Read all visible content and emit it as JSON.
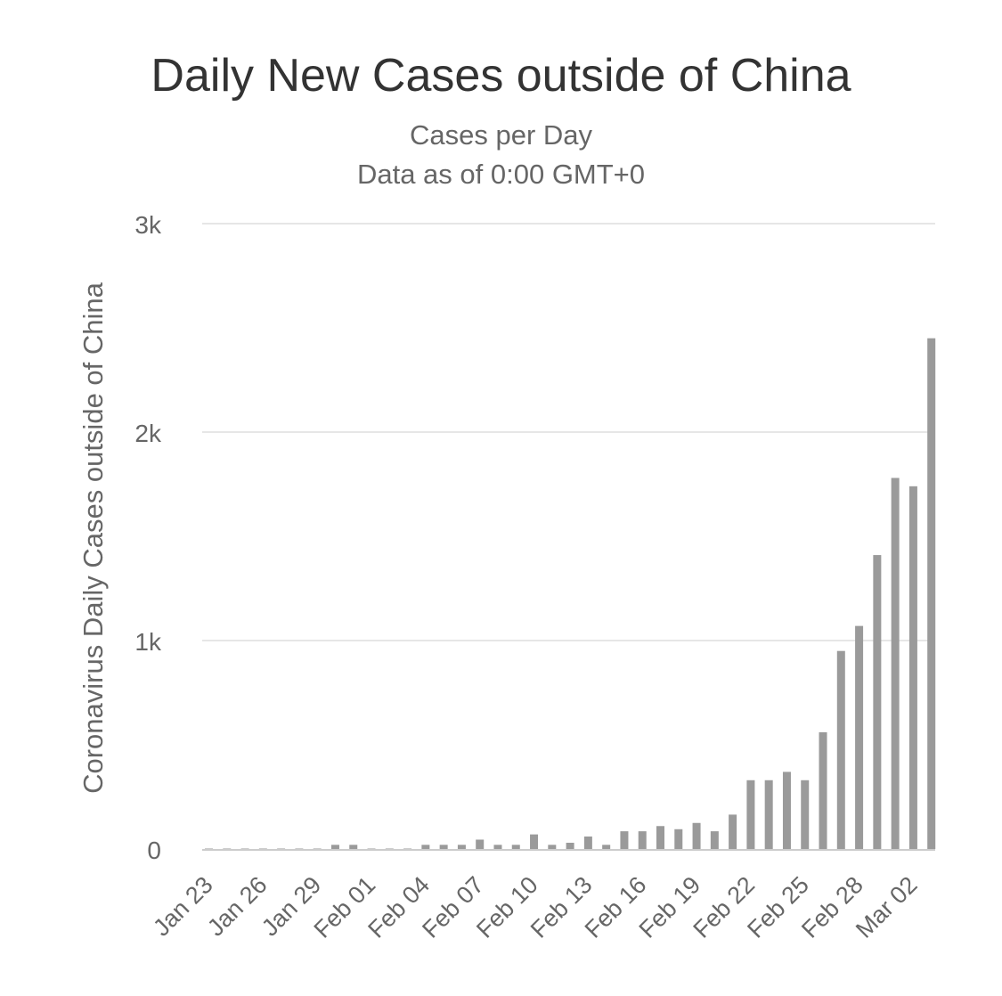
{
  "chart_data": {
    "type": "bar",
    "title": "Daily New Cases outside of China",
    "subtitle_lines": [
      "Cases per Day",
      "Data as of 0:00 GMT+0"
    ],
    "xlabel": "",
    "ylabel": "Coronavirus Daily Cases outside of China",
    "ylim": [
      0,
      3000
    ],
    "y_ticks": [
      {
        "value": 0,
        "label": "0"
      },
      {
        "value": 1000,
        "label": "1k"
      },
      {
        "value": 2000,
        "label": "2k"
      },
      {
        "value": 3000,
        "label": "3k"
      }
    ],
    "x_tick_labels": [
      "Jan 23",
      "Jan 26",
      "Jan 29",
      "Feb 01",
      "Feb 04",
      "Feb 07",
      "Feb 10",
      "Feb 13",
      "Feb 16",
      "Feb 19",
      "Feb 22",
      "Feb 25",
      "Feb 28",
      "Mar 02"
    ],
    "x_tick_every": 3,
    "categories": [
      "Jan 23",
      "Jan 24",
      "Jan 25",
      "Jan 26",
      "Jan 27",
      "Jan 28",
      "Jan 29",
      "Jan 30",
      "Jan 31",
      "Feb 01",
      "Feb 02",
      "Feb 03",
      "Feb 04",
      "Feb 05",
      "Feb 06",
      "Feb 07",
      "Feb 08",
      "Feb 09",
      "Feb 10",
      "Feb 11",
      "Feb 12",
      "Feb 13",
      "Feb 14",
      "Feb 15",
      "Feb 16",
      "Feb 17",
      "Feb 18",
      "Feb 19",
      "Feb 20",
      "Feb 21",
      "Feb 22",
      "Feb 23",
      "Feb 24",
      "Feb 25",
      "Feb 26",
      "Feb 27",
      "Feb 28",
      "Feb 29",
      "Mar 01",
      "Mar 02",
      "Mar 03"
    ],
    "values": [
      2,
      2,
      2,
      2,
      2,
      2,
      2,
      20,
      20,
      2,
      2,
      2,
      20,
      20,
      20,
      45,
      20,
      20,
      70,
      20,
      30,
      60,
      20,
      85,
      85,
      110,
      95,
      125,
      85,
      165,
      330,
      330,
      370,
      330,
      560,
      950,
      1070,
      1410,
      1780,
      1740,
      2450
    ],
    "bar_color": "#9a9a9a",
    "grid_color": "#e6e6e6",
    "axis_color": "#cccccc",
    "grid": true,
    "legend": "none"
  }
}
